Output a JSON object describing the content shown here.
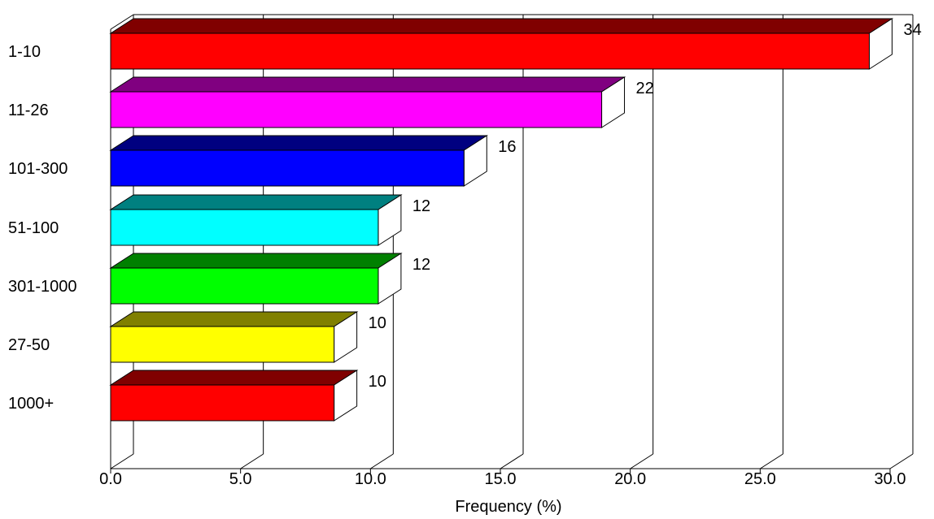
{
  "chart_data": {
    "type": "bar",
    "orientation": "horizontal",
    "three_d": true,
    "title": "",
    "xlabel": "Frequency (%)",
    "ylabel": "",
    "xlim": [
      0,
      30
    ],
    "x_ticks": [
      "0.0",
      "5.0",
      "10.0",
      "15.0",
      "20.0",
      "25.0",
      "30.0"
    ],
    "grid": true,
    "categories": [
      "1-10",
      "11-26",
      "101-300",
      "51-100",
      "301-1000",
      "27-50",
      "1000+"
    ],
    "values": [
      29.2,
      18.9,
      13.6,
      10.3,
      10.3,
      8.6,
      8.6
    ],
    "value_labels": [
      "34",
      "22",
      "16",
      "12",
      "12",
      "10",
      "10"
    ],
    "colors": [
      "#ff0000",
      "#ff00ff",
      "#0000ff",
      "#00ffff",
      "#00ff00",
      "#ffff00",
      "#ff0000"
    ],
    "top_colors": [
      "#800000",
      "#800080",
      "#000080",
      "#008080",
      "#008000",
      "#808000",
      "#800000"
    ]
  }
}
